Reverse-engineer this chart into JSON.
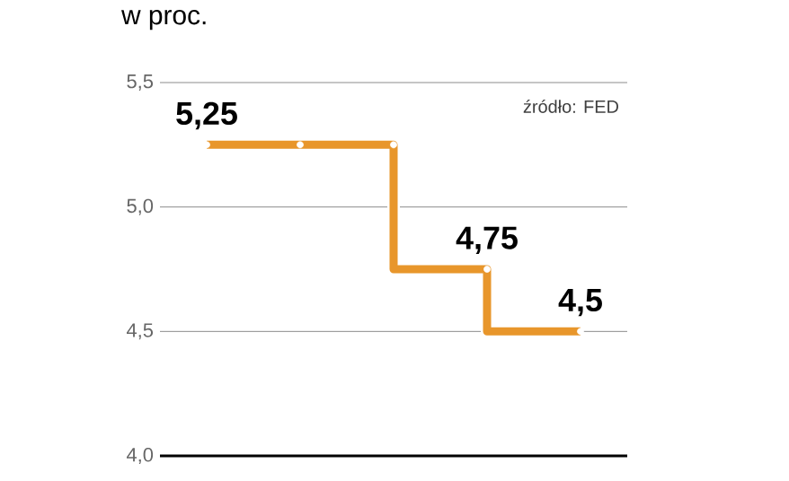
{
  "chart_data": {
    "type": "step",
    "title": "w proc.",
    "categories": [
      null,
      null,
      null,
      null,
      null
    ],
    "values": [
      5.25,
      5.25,
      5.25,
      4.75,
      4.5
    ],
    "value_labels": [
      "5,25",
      null,
      null,
      "4,75",
      "4,5"
    ],
    "color": "#e8962b",
    "marker": "circle",
    "ylim": [
      4,
      5.5
    ],
    "yticks": [
      {
        "value": 4,
        "label": "4,0"
      },
      {
        "value": 4.5,
        "label": "4,5"
      },
      {
        "value": 5,
        "label": "5,0"
      },
      {
        "value": 5.5,
        "label": "5,5"
      }
    ],
    "grid": "y",
    "tick_labels": "y",
    "annotations": [
      "źródło: FED"
    ]
  }
}
